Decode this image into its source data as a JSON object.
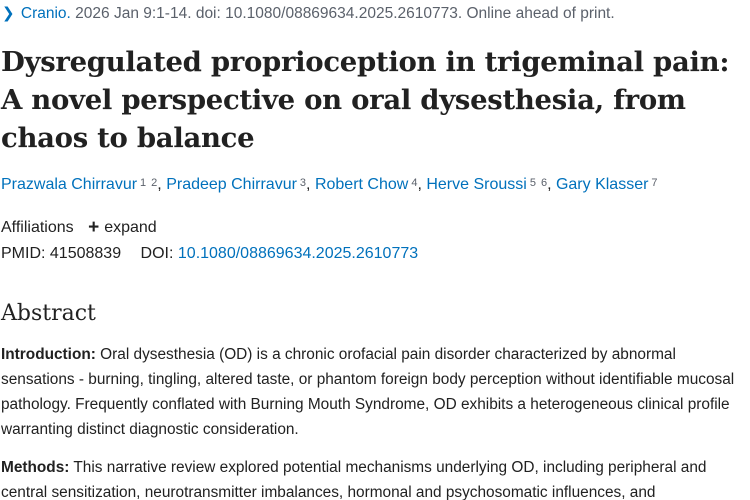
{
  "citation": {
    "journal": "Cranio.",
    "details": "2026 Jan 9:1-14. doi: 10.1080/08869634.2025.2610773. Online ahead of print."
  },
  "title": "Dysregulated proprioception in trigeminal pain: A novel perspective on oral dysesthesia, from chaos to balance",
  "authors": [
    {
      "name": "Prazwala Chirravur",
      "sups": [
        "1",
        "2"
      ]
    },
    {
      "name": "Pradeep Chirravur",
      "sups": [
        "3"
      ]
    },
    {
      "name": "Robert Chow",
      "sups": [
        "4"
      ]
    },
    {
      "name": "Herve Sroussi",
      "sups": [
        "5",
        "6"
      ]
    },
    {
      "name": "Gary Klasser",
      "sups": [
        "7"
      ]
    }
  ],
  "affiliations": {
    "label": "Affiliations",
    "expand_icon": "plus-icon",
    "expand_label": "expand"
  },
  "identifiers": {
    "pmid_label": "PMID:",
    "pmid": "41508839",
    "doi_label": "DOI:",
    "doi": "10.1080/08869634.2025.2610773"
  },
  "abstract": {
    "heading": "Abstract",
    "paragraphs": [
      {
        "label": "Introduction:",
        "text": "Oral dysesthesia (OD) is a chronic orofacial pain disorder characterized by abnormal sensations - burning, tingling, altered taste, or phantom foreign body perception without identifiable mucosal pathology. Frequently conflated with Burning Mouth Syndrome, OD exhibits a heterogeneous clinical profile warranting distinct diagnostic consideration."
      },
      {
        "label": "Methods:",
        "text": "This narrative review explored potential mechanisms underlying OD, including peripheral and central sensitization, neurotransmitter imbalances, hormonal and psychosomatic influences, and"
      }
    ]
  },
  "colors": {
    "link": "#0071bc",
    "text": "#212121",
    "muted": "#5b616b"
  }
}
